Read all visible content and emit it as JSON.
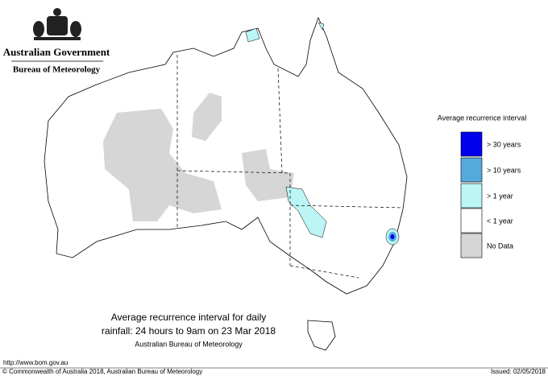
{
  "header": {
    "title": "Australian Government",
    "subtitle": "Bureau of Meteorology"
  },
  "legend": {
    "title": "Average recurrence interval",
    "items": [
      {
        "label": "> 30 years",
        "color": "#0000ee"
      },
      {
        "label": "> 10 years",
        "color": "#55aadd"
      },
      {
        "label": "> 1 year",
        "color": "#bbf5f5"
      },
      {
        "label": "< 1 year",
        "color": "#ffffff"
      },
      {
        "label": "No Data",
        "color": "#d6d6d6"
      }
    ]
  },
  "caption": {
    "line1": "Average recurrence interval for daily",
    "line2": "rainfall: 24 hours to 9am on 23 Mar 2018",
    "line3": "Australian Bureau of Meteorology"
  },
  "footer": {
    "url": "http://www.bom.gov.au",
    "copyright": "© Commonwealth of Australia 2018, Australian Bureau of Meteorology",
    "issued": "Issued: 02/05/2018"
  }
}
